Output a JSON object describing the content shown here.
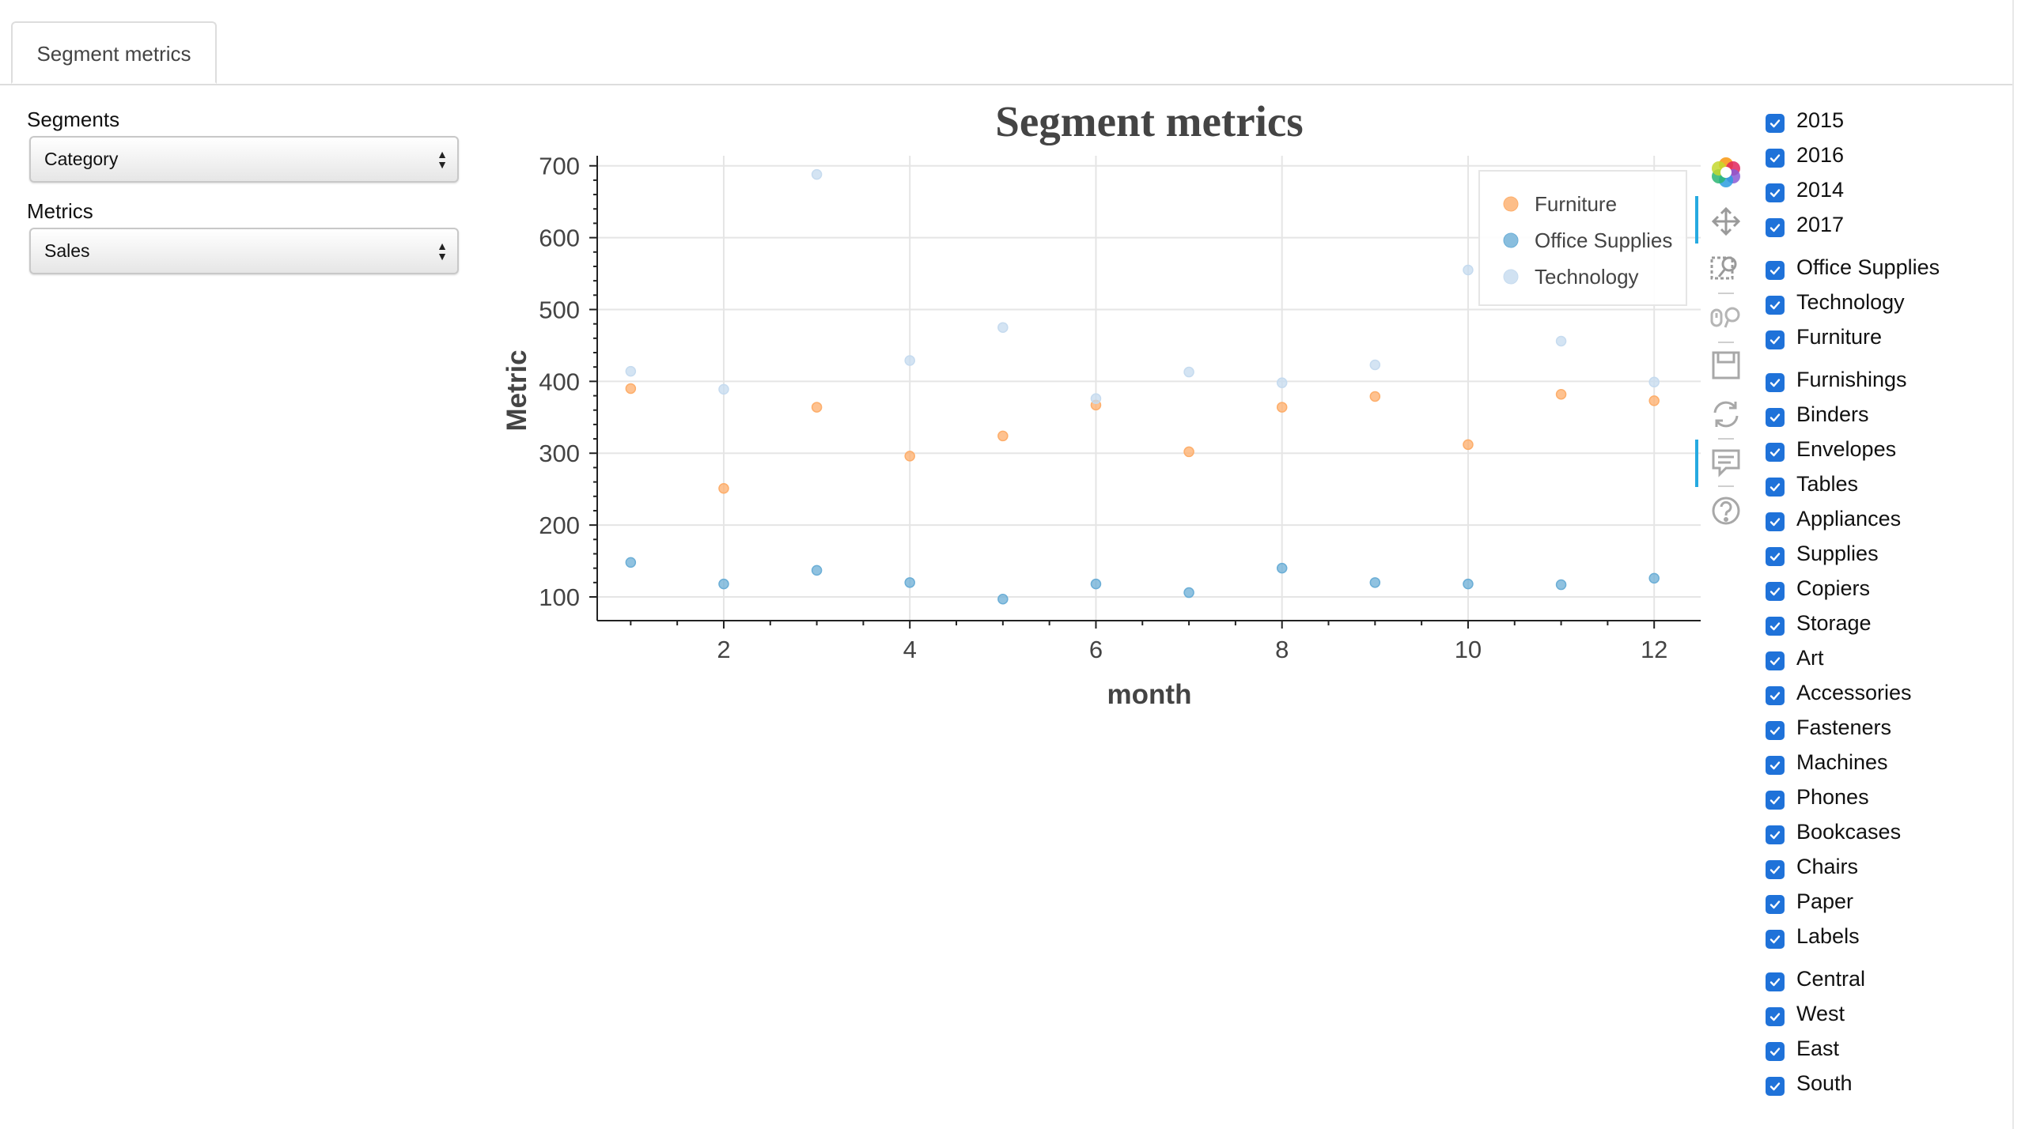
{
  "tab": {
    "label": "Segment metrics"
  },
  "controls": {
    "segments": {
      "label": "Segments",
      "value": "Category"
    },
    "metrics": {
      "label": "Metrics",
      "value": "Sales"
    }
  },
  "chart_data": {
    "type": "scatter",
    "title": "Segment metrics",
    "xlabel": "month",
    "ylabel": "Metric",
    "xlim": [
      0.64,
      12.5
    ],
    "ylim": [
      67,
      714
    ],
    "xticks": [
      2,
      4,
      6,
      8,
      10,
      12
    ],
    "yticks": [
      100,
      200,
      300,
      400,
      500,
      600,
      700
    ],
    "grid": true,
    "legend_position": "top-right",
    "x": [
      1,
      2,
      3,
      4,
      5,
      6,
      7,
      8,
      9,
      10,
      11,
      12
    ],
    "series": [
      {
        "name": "Furniture",
        "color": "#fdae6b",
        "values": [
          390,
          251,
          364,
          296,
          324,
          367,
          302,
          364,
          379,
          312,
          382,
          373
        ]
      },
      {
        "name": "Office Supplies",
        "color": "#6baed6",
        "values": [
          148,
          118,
          137,
          120,
          97,
          118,
          106,
          140,
          120,
          118,
          117,
          126
        ]
      },
      {
        "name": "Technology",
        "color": "#c6dbef",
        "values": [
          414,
          389,
          688,
          429,
          475,
          376,
          413,
          398,
          423,
          555,
          456,
          399
        ]
      }
    ]
  },
  "toolbar": {
    "tools": [
      "bokeh-logo-icon",
      "pan-icon",
      "box-zoom-icon",
      "wheel-zoom-icon",
      "save-icon",
      "reset-icon",
      "hover-icon",
      "help-icon"
    ]
  },
  "filters": {
    "years": [
      "2015",
      "2016",
      "2014",
      "2017"
    ],
    "categories": [
      "Office Supplies",
      "Technology",
      "Furniture"
    ],
    "subcategories": [
      "Furnishings",
      "Binders",
      "Envelopes",
      "Tables",
      "Appliances",
      "Supplies",
      "Copiers",
      "Storage",
      "Art",
      "Accessories",
      "Fasteners",
      "Machines",
      "Phones",
      "Bookcases",
      "Chairs",
      "Paper",
      "Labels"
    ],
    "regions": [
      "Central",
      "West",
      "East",
      "South"
    ]
  },
  "colors": {
    "checkbox": "#1f72d9",
    "active_tool": "#26aae1"
  }
}
